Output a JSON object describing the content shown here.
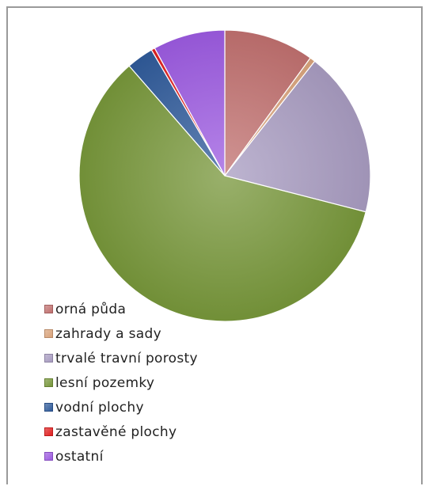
{
  "chart_data": {
    "type": "pie",
    "title": "",
    "categories": [
      "orná půda",
      "zahrady a sady",
      "trvalé travní porosty",
      "lesní pozemky",
      "vodní plochy",
      "zastavěné plochy",
      "ostatní"
    ],
    "values": [
      10.0,
      0.6,
      18.4,
      59.6,
      3.0,
      0.4,
      8.0
    ],
    "value_unit": "%",
    "colors": [
      "#c0706f",
      "#d8a27a",
      "#a79bc0",
      "#77963a",
      "#2f5a9a",
      "#e02020",
      "#9c5be0"
    ],
    "start": "12 o'clock",
    "direction": "clockwise",
    "legend_placement": "bottom-left, overlapping pie"
  }
}
